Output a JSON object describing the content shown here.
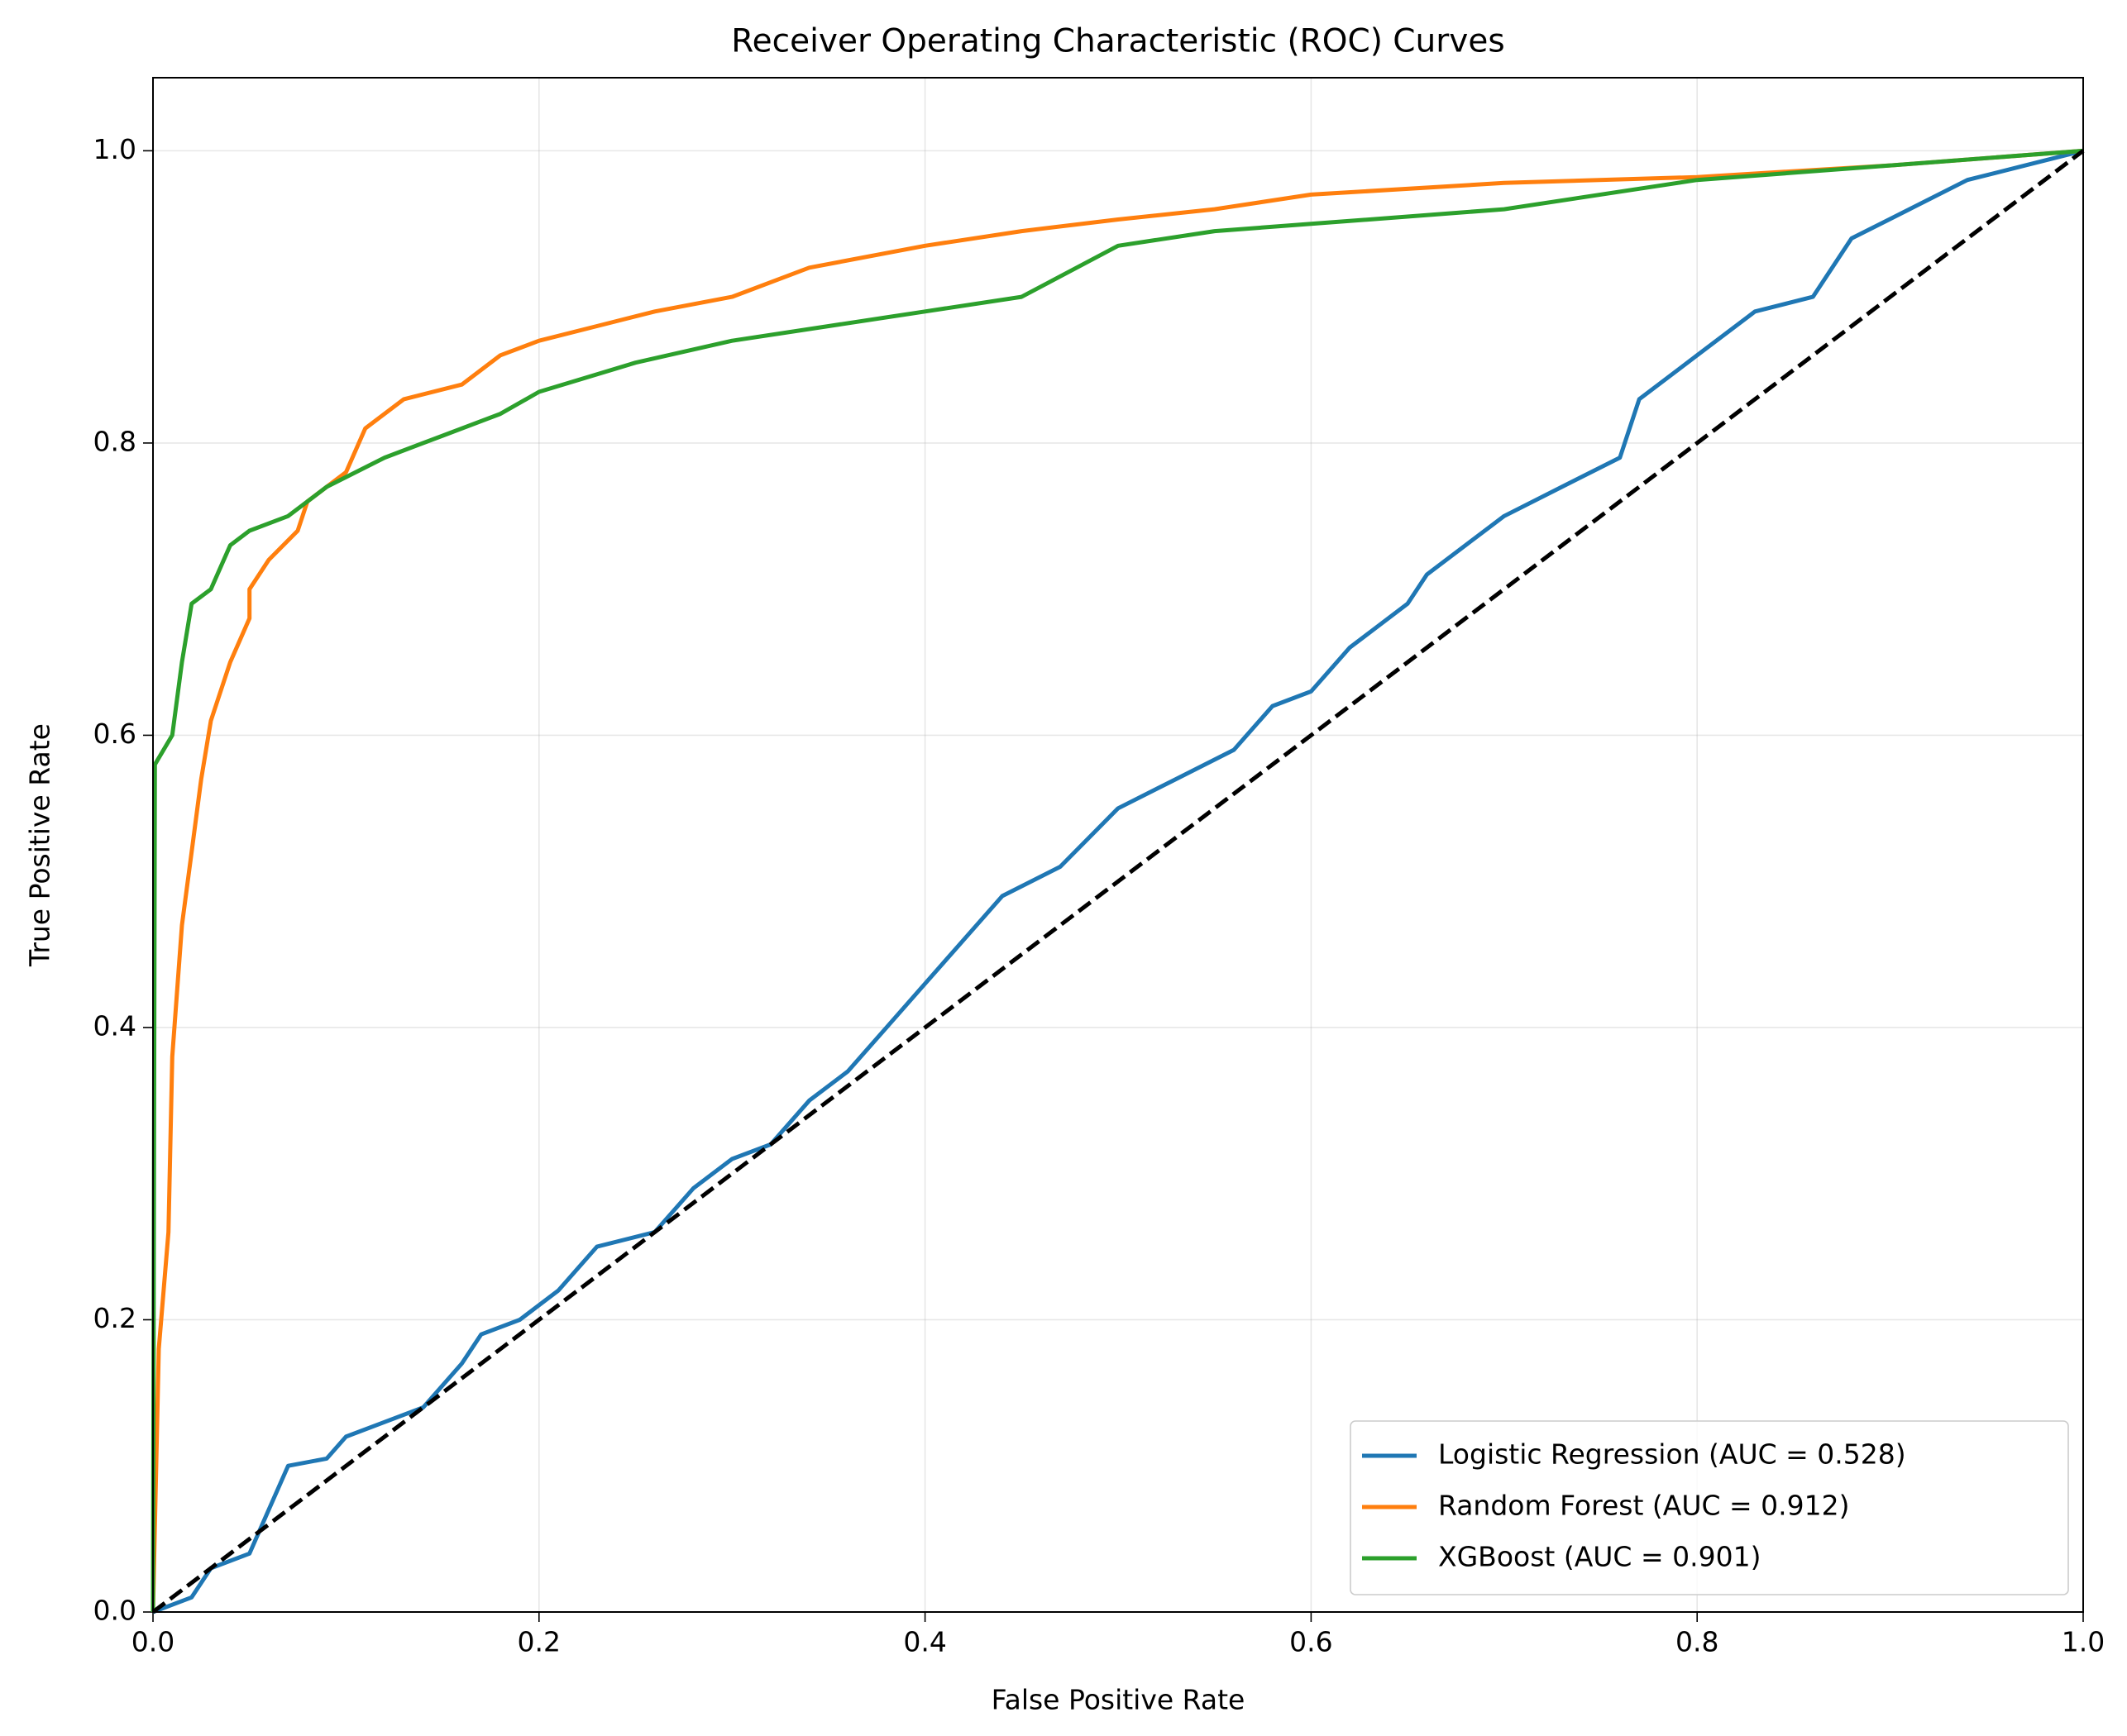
{
  "chart_data": {
    "type": "line",
    "title": "Receiver Operating Characteristic (ROC) Curves",
    "xlabel": "False Positive Rate",
    "ylabel": "True Positive Rate",
    "xlim": [
      0,
      1
    ],
    "ylim": [
      0,
      1.05
    ],
    "xticks": [
      {
        "value": 0,
        "label": "0.0"
      },
      {
        "value": 0.2,
        "label": "0.2"
      },
      {
        "value": 0.4,
        "label": "0.4"
      },
      {
        "value": 0.6,
        "label": "0.6"
      },
      {
        "value": 0.8,
        "label": "0.8"
      },
      {
        "value": 1,
        "label": "1.0"
      }
    ],
    "yticks": [
      {
        "value": 0,
        "label": "0.0"
      },
      {
        "value": 0.2,
        "label": "0.2"
      },
      {
        "value": 0.4,
        "label": "0.4"
      },
      {
        "value": 0.6,
        "label": "0.6"
      },
      {
        "value": 0.8,
        "label": "0.8"
      },
      {
        "value": 1,
        "label": "1.0"
      }
    ],
    "grid": true,
    "legend": "lower right",
    "series": [
      {
        "name": "Logistic Regression (AUC = 0.528)",
        "color": "#1f77b4",
        "x": [
          0,
          0.01,
          0.02,
          0.03,
          0.05,
          0.06,
          0.07,
          0.09,
          0.1,
          0.12,
          0.14,
          0.16,
          0.17,
          0.19,
          0.21,
          0.23,
          0.26,
          0.28,
          0.3,
          0.32,
          0.34,
          0.36,
          0.38,
          0.4,
          0.42,
          0.44,
          0.47,
          0.5,
          0.53,
          0.56,
          0.58,
          0.6,
          0.62,
          0.65,
          0.66,
          0.68,
          0.7,
          0.73,
          0.76,
          0.77,
          0.8,
          0.83,
          0.86,
          0.88,
          0.91,
          0.94,
          0.97,
          1
        ],
        "values": [
          0,
          0.005,
          0.01,
          0.03,
          0.04,
          0.07,
          0.1,
          0.105,
          0.12,
          0.13,
          0.14,
          0.17,
          0.19,
          0.2,
          0.22,
          0.25,
          0.26,
          0.29,
          0.31,
          0.32,
          0.35,
          0.37,
          0.4,
          0.43,
          0.46,
          0.49,
          0.51,
          0.55,
          0.57,
          0.59,
          0.62,
          0.63,
          0.66,
          0.69,
          0.71,
          0.73,
          0.75,
          0.77,
          0.79,
          0.83,
          0.86,
          0.89,
          0.9,
          0.94,
          0.96,
          0.98,
          0.99,
          1
        ]
      },
      {
        "name": "Random Forest (AUC = 0.912)",
        "color": "#ff7f0e",
        "x": [
          0,
          0.003,
          0.008,
          0.01,
          0.015,
          0.02,
          0.025,
          0.03,
          0.04,
          0.05,
          0.05,
          0.06,
          0.075,
          0.08,
          0.1,
          0.11,
          0.13,
          0.16,
          0.18,
          0.2,
          0.23,
          0.26,
          0.3,
          0.34,
          0.4,
          0.45,
          0.5,
          0.55,
          0.6,
          0.7,
          0.8,
          0.9,
          1
        ],
        "values": [
          0,
          0.18,
          0.26,
          0.38,
          0.47,
          0.52,
          0.57,
          0.61,
          0.65,
          0.68,
          0.7,
          0.72,
          0.74,
          0.76,
          0.78,
          0.81,
          0.83,
          0.84,
          0.86,
          0.87,
          0.88,
          0.89,
          0.9,
          0.92,
          0.935,
          0.945,
          0.953,
          0.96,
          0.97,
          0.978,
          0.982,
          0.99,
          1
        ]
      },
      {
        "name": "XGBoost (AUC = 0.901)",
        "color": "#2ca02c",
        "x": [
          0,
          0.001,
          0.01,
          0.015,
          0.02,
          0.03,
          0.04,
          0.05,
          0.07,
          0.09,
          0.12,
          0.15,
          0.18,
          0.2,
          0.25,
          0.3,
          0.35,
          0.4,
          0.45,
          0.5,
          0.55,
          0.6,
          0.7,
          0.8,
          0.9,
          1
        ],
        "values": [
          0,
          0.58,
          0.6,
          0.65,
          0.69,
          0.7,
          0.73,
          0.74,
          0.75,
          0.77,
          0.79,
          0.805,
          0.82,
          0.835,
          0.855,
          0.87,
          0.88,
          0.89,
          0.9,
          0.935,
          0.945,
          0.95,
          0.96,
          0.98,
          0.99,
          1
        ]
      }
    ],
    "reference_line": {
      "x": [
        0,
        1
      ],
      "values": [
        0,
        1
      ],
      "color": "#000000",
      "dashed": true
    }
  }
}
